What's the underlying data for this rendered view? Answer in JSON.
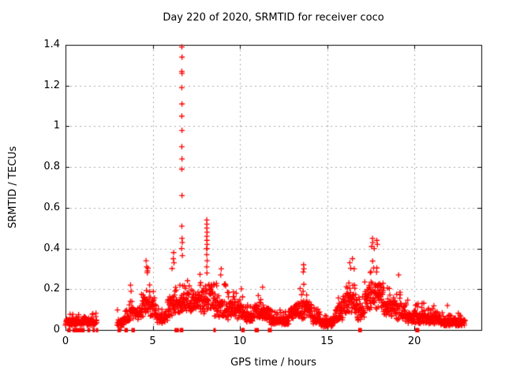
{
  "chart_data": {
    "type": "scatter",
    "title": "Day 220 of 2020, SRMTID for receiver coco",
    "xlabel": "GPS time / hours",
    "ylabel": "SRMTID / TECUs",
    "xlim": [
      0,
      23.84
    ],
    "ylim": [
      0,
      1.4
    ],
    "grid": true,
    "legend": "none",
    "x_ticks": [
      0,
      5,
      10,
      15,
      20
    ],
    "x_tick_labels": [
      "0",
      "5",
      "10",
      "15",
      "20"
    ],
    "y_ticks": [
      0,
      0.2,
      0.4,
      0.6,
      0.8,
      1.0,
      1.2,
      1.4
    ],
    "y_tick_labels": [
      "0",
      "0.2",
      "0.4",
      "0.6",
      "0.8",
      "1",
      "1.2",
      "1.4"
    ],
    "marker": "plus",
    "marker_color": "#ff0000",
    "grid_color": "#a8a8a8",
    "border_color": "#000000",
    "series_name": "SRMTID",
    "envelope_bins": [
      {
        "t0": 0.0,
        "t1": 1.8,
        "lo": 0.02,
        "typ": 0.05,
        "max": 0.09,
        "density": 70
      },
      {
        "t0": 2.95,
        "t1": 3.35,
        "lo": 0.01,
        "typ": 0.05,
        "max": 0.11,
        "density": 60
      },
      {
        "t0": 3.35,
        "t1": 3.7,
        "lo": 0.03,
        "typ": 0.07,
        "max": 0.14,
        "density": 65
      },
      {
        "t0": 3.7,
        "t1": 4.35,
        "lo": 0.05,
        "typ": 0.11,
        "max": 0.22,
        "density": 70,
        "peak": 0.1
      },
      {
        "t0": 4.35,
        "t1": 5.2,
        "lo": 0.06,
        "typ": 0.16,
        "max": 0.34,
        "density": 80,
        "peak": 0.4
      },
      {
        "t0": 5.2,
        "t1": 5.85,
        "lo": 0.03,
        "typ": 0.08,
        "max": 0.14,
        "density": 70
      },
      {
        "t0": 5.85,
        "t1": 6.45,
        "lo": 0.06,
        "typ": 0.15,
        "max": 0.38,
        "density": 80,
        "peak": 0.55
      },
      {
        "t0": 6.45,
        "t1": 7.1,
        "lo": 0.08,
        "typ": 0.18,
        "max": 0.3,
        "density": 80
      },
      {
        "t0": 7.1,
        "t1": 8.0,
        "lo": 0.08,
        "typ": 0.18,
        "max": 0.36,
        "density": 80,
        "peak": 0.8
      },
      {
        "t0": 8.0,
        "t1": 8.45,
        "lo": 0.1,
        "typ": 0.22,
        "max": 0.4,
        "density": 80,
        "peak": 0.25
      },
      {
        "t0": 8.45,
        "t1": 9.2,
        "lo": 0.06,
        "typ": 0.15,
        "max": 0.3,
        "density": 80
      },
      {
        "t0": 9.2,
        "t1": 10.2,
        "lo": 0.05,
        "typ": 0.13,
        "max": 0.22,
        "density": 80
      },
      {
        "t0": 10.2,
        "t1": 10.75,
        "lo": 0.04,
        "typ": 0.09,
        "max": 0.15,
        "density": 75
      },
      {
        "t0": 10.75,
        "t1": 11.7,
        "lo": 0.05,
        "typ": 0.11,
        "max": 0.21,
        "density": 80,
        "peak": 0.5
      },
      {
        "t0": 11.7,
        "t1": 12.8,
        "lo": 0.025,
        "typ": 0.06,
        "max": 0.11,
        "density": 80
      },
      {
        "t0": 12.8,
        "t1": 13.5,
        "lo": 0.05,
        "typ": 0.12,
        "max": 0.24,
        "density": 80,
        "peak": 0.9
      },
      {
        "t0": 13.5,
        "t1": 14.15,
        "lo": 0.05,
        "typ": 0.14,
        "max": 0.3,
        "density": 80,
        "peak": 0.25
      },
      {
        "t0": 14.15,
        "t1": 14.6,
        "lo": 0.03,
        "typ": 0.08,
        "max": 0.14,
        "density": 75
      },
      {
        "t0": 14.6,
        "t1": 15.45,
        "lo": 0.015,
        "typ": 0.05,
        "max": 0.09,
        "density": 80
      },
      {
        "t0": 15.45,
        "t1": 15.9,
        "lo": 0.04,
        "typ": 0.1,
        "max": 0.2,
        "density": 80
      },
      {
        "t0": 15.9,
        "t1": 16.7,
        "lo": 0.08,
        "typ": 0.18,
        "max": 0.34,
        "density": 80,
        "peak": 0.5
      },
      {
        "t0": 16.7,
        "t1": 17.15,
        "lo": 0.04,
        "typ": 0.11,
        "max": 0.2,
        "density": 75
      },
      {
        "t0": 17.15,
        "t1": 18.2,
        "lo": 0.1,
        "typ": 0.22,
        "max": 0.44,
        "density": 85,
        "peak": 0.45
      },
      {
        "t0": 18.2,
        "t1": 18.9,
        "lo": 0.06,
        "typ": 0.14,
        "max": 0.28,
        "density": 80
      },
      {
        "t0": 18.9,
        "t1": 19.45,
        "lo": 0.05,
        "typ": 0.13,
        "max": 0.27,
        "density": 75,
        "peak": 0.4
      },
      {
        "t0": 19.45,
        "t1": 20.6,
        "lo": 0.03,
        "typ": 0.08,
        "max": 0.16,
        "density": 80
      },
      {
        "t0": 20.6,
        "t1": 21.5,
        "lo": 0.03,
        "typ": 0.07,
        "max": 0.13,
        "density": 80
      },
      {
        "t0": 21.5,
        "t1": 22.9,
        "lo": 0.02,
        "typ": 0.05,
        "max": 0.1,
        "density": 85
      }
    ],
    "explicit_points": [
      [
        6.67,
        1.39
      ],
      [
        6.68,
        1.34
      ],
      [
        6.67,
        1.27
      ],
      [
        6.68,
        1.26
      ],
      [
        6.67,
        1.19
      ],
      [
        6.68,
        1.11
      ],
      [
        6.67,
        1.05
      ],
      [
        6.68,
        0.98
      ],
      [
        6.67,
        0.9
      ],
      [
        6.68,
        0.84
      ],
      [
        6.67,
        0.79
      ],
      [
        6.68,
        0.66
      ],
      [
        6.67,
        0.51
      ],
      [
        6.68,
        0.45
      ],
      [
        6.7,
        0.43
      ],
      [
        6.66,
        0.4
      ],
      [
        6.7,
        0.365
      ],
      [
        8.1,
        0.54
      ],
      [
        8.11,
        0.52
      ],
      [
        8.1,
        0.5
      ],
      [
        8.12,
        0.48
      ],
      [
        8.1,
        0.46
      ],
      [
        8.11,
        0.44
      ],
      [
        8.12,
        0.42
      ],
      [
        8.1,
        0.4
      ],
      [
        8.11,
        0.4
      ],
      [
        8.1,
        0.37
      ],
      [
        8.12,
        0.34
      ],
      [
        8.1,
        0.31
      ],
      [
        8.11,
        0.28
      ],
      [
        4.62,
        0.34
      ],
      [
        4.65,
        0.31
      ],
      [
        4.7,
        0.29
      ],
      [
        6.2,
        0.38
      ],
      [
        6.18,
        0.35
      ],
      [
        6.22,
        0.33
      ],
      [
        3.73,
        0.22
      ],
      [
        3.76,
        0.19
      ],
      [
        8.93,
        0.3
      ],
      [
        8.9,
        0.27
      ],
      [
        13.65,
        0.32
      ],
      [
        13.67,
        0.3
      ],
      [
        13.63,
        0.285
      ],
      [
        16.3,
        0.33
      ],
      [
        16.45,
        0.35
      ],
      [
        16.55,
        0.3
      ],
      [
        17.6,
        0.45
      ],
      [
        17.62,
        0.43
      ],
      [
        17.55,
        0.41
      ],
      [
        17.7,
        0.4
      ],
      [
        17.85,
        0.44
      ],
      [
        17.88,
        0.42
      ],
      [
        19.1,
        0.27
      ],
      [
        11.3,
        0.21
      ],
      [
        21.9,
        0.12
      ]
    ],
    "zero_value_segments": [
      [
        0.1,
        0.3
      ],
      [
        0.4,
        1.1
      ],
      [
        1.25,
        1.42
      ],
      [
        1.55,
        1.6
      ],
      [
        1.74,
        1.78
      ],
      [
        2.98,
        3.18
      ],
      [
        3.38,
        3.58
      ],
      [
        3.78,
        3.98
      ],
      [
        6.25,
        6.5
      ],
      [
        6.55,
        6.58
      ],
      [
        6.62,
        6.65
      ],
      [
        8.48,
        8.53
      ],
      [
        10.07,
        10.11
      ],
      [
        10.14,
        10.17
      ],
      [
        10.84,
        10.88
      ],
      [
        10.95,
        10.99
      ],
      [
        11.6,
        11.83
      ],
      [
        16.78,
        16.82
      ],
      [
        16.86,
        16.89
      ],
      [
        20.05,
        20.09
      ],
      [
        20.15,
        20.19
      ]
    ]
  }
}
